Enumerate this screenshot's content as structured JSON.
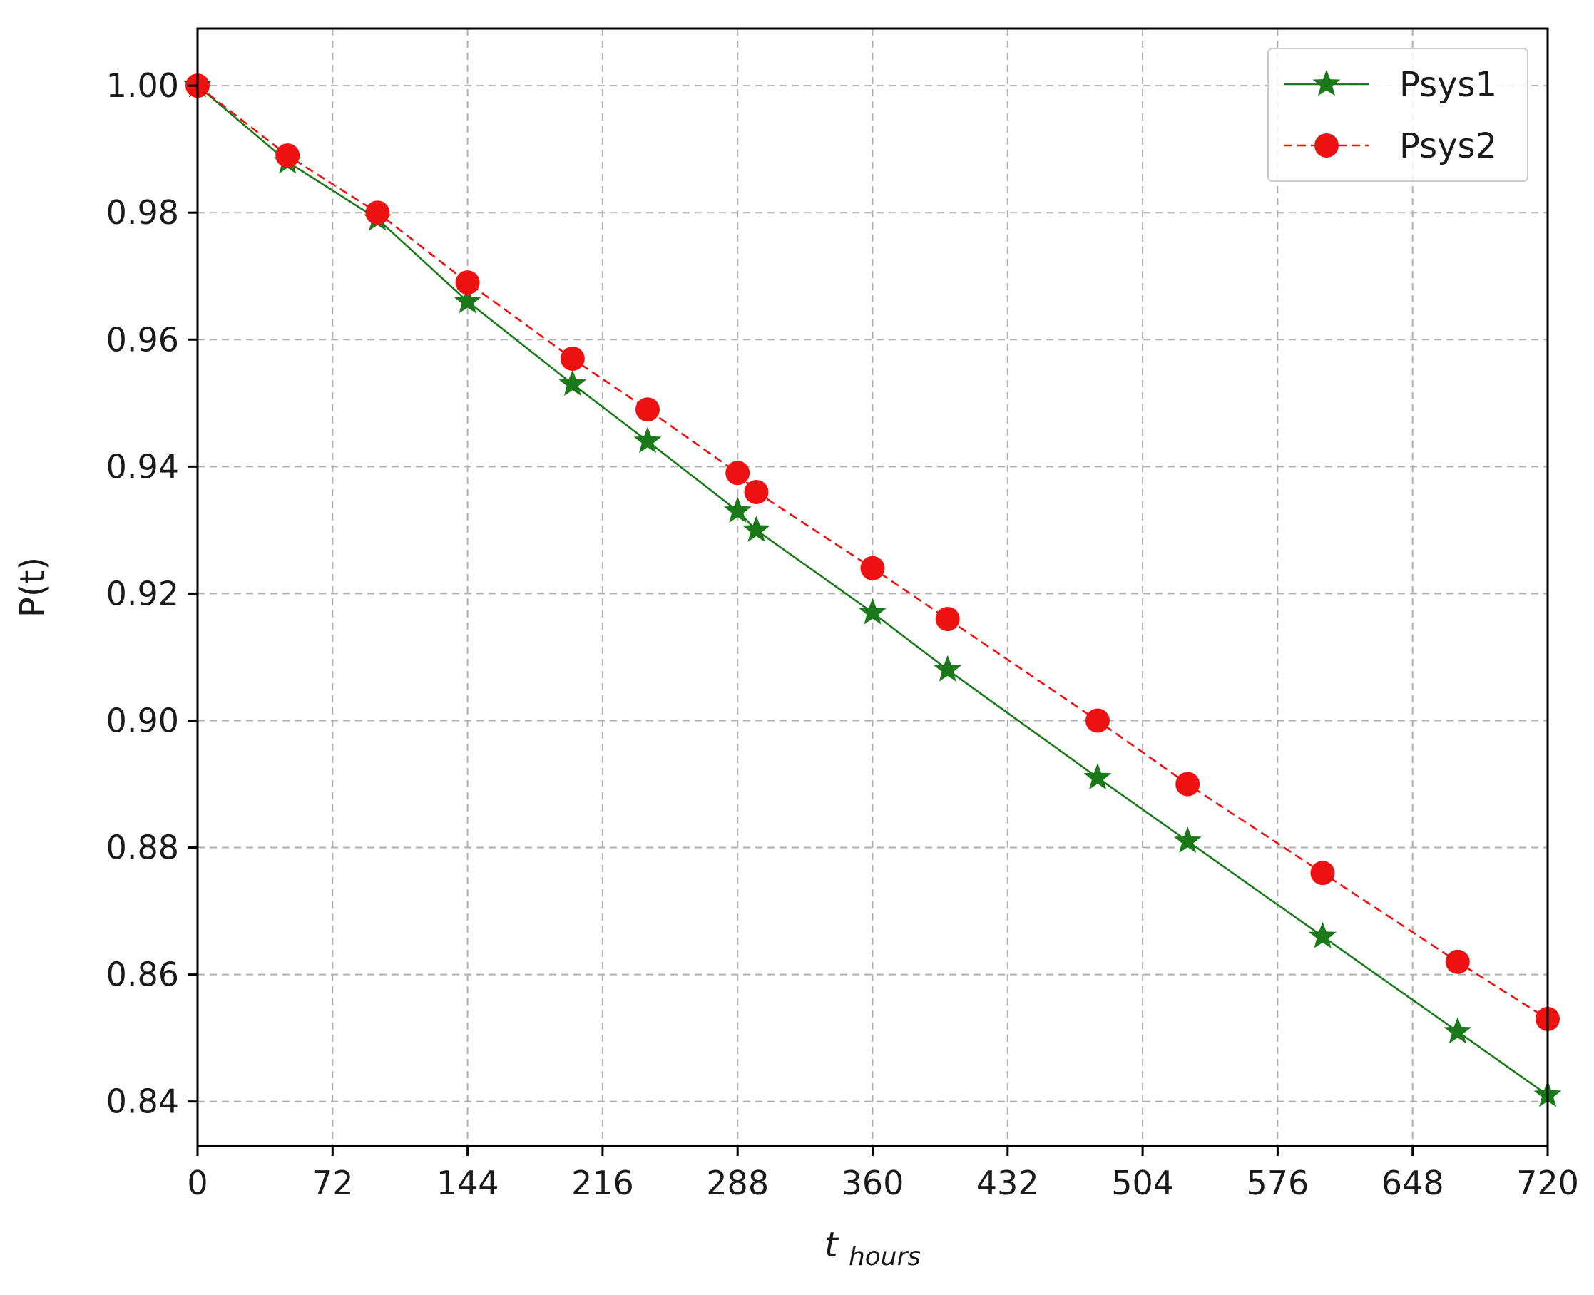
{
  "chart_data": {
    "type": "line",
    "xlabel_main": "t",
    "xlabel_sub": "hours",
    "ylabel": "P(t)",
    "xlim": [
      0,
      720
    ],
    "ylim": [
      0.833,
      1.009
    ],
    "xticks": [
      0,
      72,
      144,
      216,
      288,
      360,
      432,
      504,
      576,
      648,
      720
    ],
    "xtick_labels": [
      "0",
      "72",
      "144",
      "216",
      "288",
      "360",
      "432",
      "504",
      "576",
      "648",
      "720"
    ],
    "yticks": [
      0.84,
      0.86,
      0.88,
      0.9,
      0.92,
      0.94,
      0.96,
      0.98,
      1.0
    ],
    "ytick_labels": [
      "0.84",
      "0.86",
      "0.88",
      "0.90",
      "0.92",
      "0.94",
      "0.96",
      "0.98",
      "1.00"
    ],
    "grid": true,
    "legend_position": "top-right",
    "series": [
      {
        "name": "Psys1",
        "color": "#1a7a1a",
        "line_style": "solid",
        "marker": "star",
        "x": [
          0,
          48,
          96,
          144,
          200,
          240,
          288,
          298,
          360,
          400,
          480,
          528,
          600,
          672,
          720
        ],
        "y": [
          1.0,
          0.988,
          0.979,
          0.966,
          0.953,
          0.944,
          0.933,
          0.93,
          0.917,
          0.908,
          0.891,
          0.881,
          0.866,
          0.851,
          0.841
        ]
      },
      {
        "name": "Psys2",
        "color": "#ee1111",
        "line_style": "dashed",
        "marker": "circle",
        "x": [
          0,
          48,
          96,
          144,
          200,
          240,
          288,
          298,
          360,
          400,
          480,
          528,
          600,
          672,
          720
        ],
        "y": [
          1.0,
          0.989,
          0.98,
          0.969,
          0.957,
          0.949,
          0.939,
          0.936,
          0.924,
          0.916,
          0.9,
          0.89,
          0.876,
          0.862,
          0.853
        ]
      }
    ]
  }
}
